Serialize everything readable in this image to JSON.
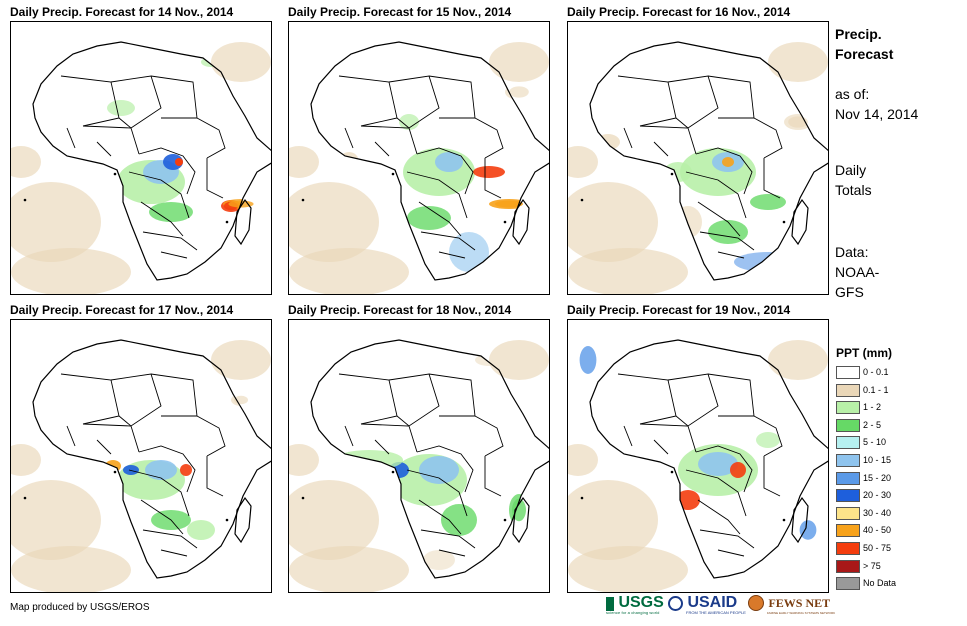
{
  "panels": [
    {
      "title": "Daily Precip. Forecast for 14 Nov., 2014"
    },
    {
      "title": "Daily Precip. Forecast for 15 Nov., 2014"
    },
    {
      "title": "Daily Precip. Forecast for 16 Nov., 2014"
    },
    {
      "title": "Daily Precip. Forecast for 17 Nov., 2014"
    },
    {
      "title": "Daily Precip. Forecast for 18 Nov., 2014"
    },
    {
      "title": "Daily Precip. Forecast for 19 Nov., 2014"
    }
  ],
  "sidebar": {
    "title_line1": "Precip.",
    "title_line2": "Forecast",
    "asof_line1": "as of:",
    "asof_line2": "Nov 14, 2014",
    "totals_line1": "Daily",
    "totals_line2": "Totals",
    "data_line1": "Data:",
    "data_line2": "NOAA-",
    "data_line3": "GFS"
  },
  "legend": {
    "title": "PPT (mm)",
    "items": [
      {
        "label": "0 - 0.1",
        "color": "#ffffff"
      },
      {
        "label": "0.1 - 1",
        "color": "#ead7b8"
      },
      {
        "label": "1 - 2",
        "color": "#b8f0a8"
      },
      {
        "label": "2 - 5",
        "color": "#66d966"
      },
      {
        "label": "5 - 10",
        "color": "#b6f0f0"
      },
      {
        "label": "10 - 15",
        "color": "#8fc4ee"
      },
      {
        "label": "15 - 20",
        "color": "#5b9ae8"
      },
      {
        "label": "20 - 30",
        "color": "#1e5fdc"
      },
      {
        "label": "30 - 40",
        "color": "#fde48a"
      },
      {
        "label": "40 - 50",
        "color": "#f7a21b"
      },
      {
        "label": "50 - 75",
        "color": "#f43d0e"
      },
      {
        "label": "> 75",
        "color": "#a81818"
      },
      {
        "label": "No Data",
        "color": "#999999"
      }
    ]
  },
  "credit": "Map produced by USGS/EROS",
  "logos": {
    "usgs": "USGS",
    "usaid": "USAID",
    "fews": "FEWS NET",
    "usgs_tagline": "science for a changing world",
    "usaid_tagline": "FROM THE AMERICAN PEOPLE",
    "fews_tagline": "FAMINE EARLY WARNING SYSTEMS NETWORK"
  }
}
